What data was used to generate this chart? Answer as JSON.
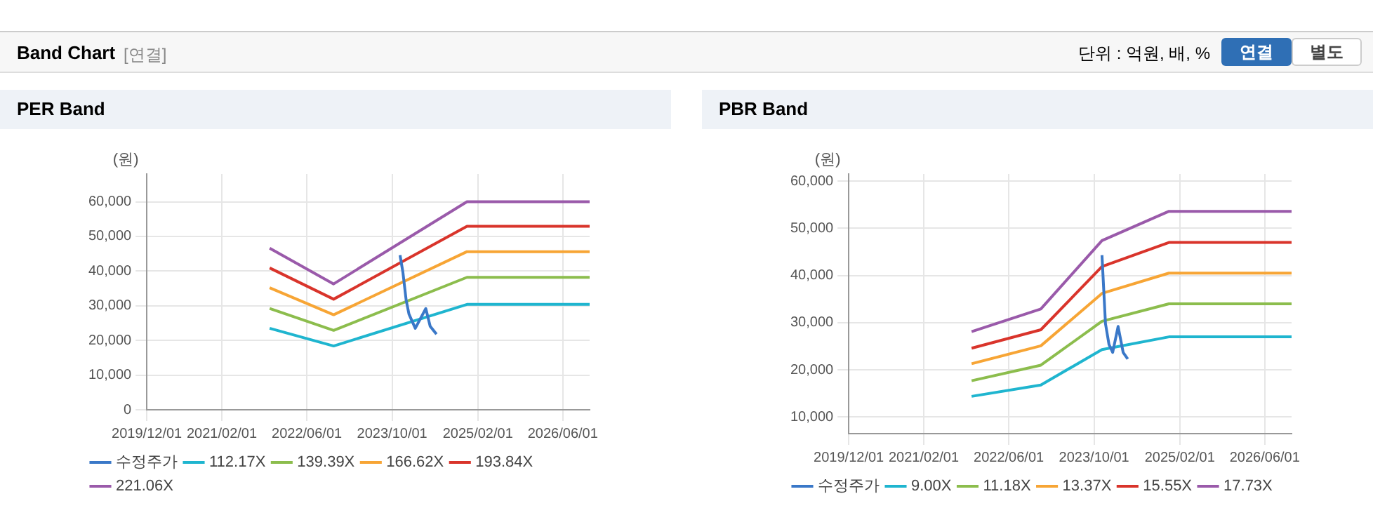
{
  "chart_data": [
    {
      "type": "other",
      "title": "Band Chart",
      "annotations": [
        "[연결]",
        "단위 : 억원, 배, %",
        "연결",
        "별도"
      ]
    },
    {
      "type": "line",
      "title": "PER Band",
      "ylabel": "(원)",
      "xlim": [
        "2019-12-01",
        "2026-11-01"
      ],
      "xticks": [
        {
          "value": "2019-12-01",
          "label": "2019/12/01"
        },
        {
          "value": "2021-02-01",
          "label": "2021/02/01"
        },
        {
          "value": "2022-06-01",
          "label": "2022/06/01"
        },
        {
          "value": "2023-10-01",
          "label": "2023/10/01"
        },
        {
          "value": "2025-02-01",
          "label": "2025/02/01"
        },
        {
          "value": "2026-06-01",
          "label": "2026/06/01"
        }
      ],
      "ylim": [
        0,
        68000
      ],
      "yticks": [
        0,
        {
          "value": 10000,
          "label": "10,000"
        },
        {
          "value": 20000,
          "label": "20,000"
        },
        {
          "value": 30000,
          "label": "30,000"
        },
        {
          "value": 40000,
          "label": "40,000"
        },
        {
          "value": 50000,
          "label": "50,000"
        },
        {
          "value": 60000,
          "label": "60,000"
        }
      ],
      "grid": true,
      "legend": "bottom",
      "marker": "none",
      "line_style": "solid",
      "series": [
        {
          "name": "수정주가",
          "color": "#3a78c8",
          "x": [
            "2023-11-15",
            "2023-12-01",
            "2023-12-20",
            "2024-01-05",
            "2024-02-10",
            "2024-04-10",
            "2024-05-05",
            "2024-06-10"
          ],
          "values": [
            44600,
            39800,
            31600,
            27600,
            23500,
            29200,
            24100,
            21800
          ]
        },
        {
          "name": "112.17X",
          "color": "#1fb5cf",
          "x": [
            "2021-11-01",
            "2022-11-01",
            "2024-12-01",
            "2026-11-01"
          ],
          "values": [
            23500,
            18400,
            30400,
            30400
          ]
        },
        {
          "name": "139.39X",
          "color": "#8cbd4d",
          "x": [
            "2021-11-01",
            "2022-11-01",
            "2024-12-01",
            "2026-11-01"
          ],
          "values": [
            29200,
            22900,
            38200,
            38200
          ]
        },
        {
          "name": "166.62X",
          "color": "#f7a535",
          "x": [
            "2021-11-01",
            "2022-11-01",
            "2024-12-01",
            "2026-11-01"
          ],
          "values": [
            35200,
            27400,
            45600,
            45600
          ]
        },
        {
          "name": "193.84X",
          "color": "#d9342b",
          "x": [
            "2021-11-01",
            "2022-11-01",
            "2024-12-01",
            "2026-11-01"
          ],
          "values": [
            40900,
            31900,
            52900,
            52900
          ]
        },
        {
          "name": "221.06X",
          "color": "#9a5aaa",
          "x": [
            "2021-11-01",
            "2022-11-01",
            "2024-12-01",
            "2026-11-01"
          ],
          "values": [
            46600,
            36300,
            60000,
            60000
          ]
        }
      ]
    },
    {
      "type": "line",
      "title": "PBR Band",
      "ylabel": "(원)",
      "xlim": [
        "2019-12-01",
        "2026-11-01"
      ],
      "xticks": [
        {
          "value": "2019-12-01",
          "label": "2019/12/01"
        },
        {
          "value": "2021-02-01",
          "label": "2021/02/01"
        },
        {
          "value": "2022-06-01",
          "label": "2022/06/01"
        },
        {
          "value": "2023-10-01",
          "label": "2023/10/01"
        },
        {
          "value": "2025-02-01",
          "label": "2025/02/01"
        },
        {
          "value": "2026-06-01",
          "label": "2026/06/01"
        }
      ],
      "ylim": [
        6500,
        61500
      ],
      "yticks": [
        {
          "value": 10000,
          "label": "10,000"
        },
        {
          "value": 20000,
          "label": "20,000"
        },
        {
          "value": 30000,
          "label": "30,000"
        },
        {
          "value": 40000,
          "label": "40,000"
        },
        {
          "value": 50000,
          "label": "50,000"
        },
        {
          "value": 60000,
          "label": "60,000"
        }
      ],
      "grid": true,
      "legend": "bottom",
      "marker": "none",
      "line_style": "solid",
      "series": [
        {
          "name": "수정주가",
          "color": "#3a78c8",
          "x": [
            "2023-11-15",
            "2023-11-25",
            "2023-12-05",
            "2023-12-25",
            "2024-01-15",
            "2024-02-15",
            "2024-03-15",
            "2024-04-10"
          ],
          "values": [
            44300,
            37000,
            29800,
            25400,
            23700,
            29200,
            23700,
            22300
          ]
        },
        {
          "name": "9.00X",
          "color": "#1fb5cf",
          "x": [
            "2021-11-01",
            "2022-12-01",
            "2023-11-15",
            "2024-12-01",
            "2026-11-01"
          ],
          "values": [
            14400,
            16800,
            24300,
            27000,
            27000
          ]
        },
        {
          "name": "11.18X",
          "color": "#8cbd4d",
          "x": [
            "2021-11-01",
            "2022-12-01",
            "2023-11-15",
            "2024-12-01",
            "2026-11-01"
          ],
          "values": [
            17700,
            21000,
            30300,
            34000,
            34000
          ]
        },
        {
          "name": "13.37X",
          "color": "#f7a535",
          "x": [
            "2021-11-01",
            "2022-12-01",
            "2023-11-15",
            "2024-12-01",
            "2026-11-01"
          ],
          "values": [
            21300,
            25100,
            36200,
            40500,
            40500
          ]
        },
        {
          "name": "15.55X",
          "color": "#d9342b",
          "x": [
            "2021-11-01",
            "2022-12-01",
            "2023-11-15",
            "2024-12-01",
            "2026-11-01"
          ],
          "values": [
            24600,
            28500,
            41900,
            47000,
            47000
          ]
        },
        {
          "name": "17.73X",
          "color": "#9a5aaa",
          "x": [
            "2021-11-01",
            "2022-12-01",
            "2023-11-15",
            "2024-12-01",
            "2026-11-01"
          ],
          "values": [
            28100,
            32900,
            47400,
            53600,
            53600
          ]
        }
      ]
    }
  ]
}
